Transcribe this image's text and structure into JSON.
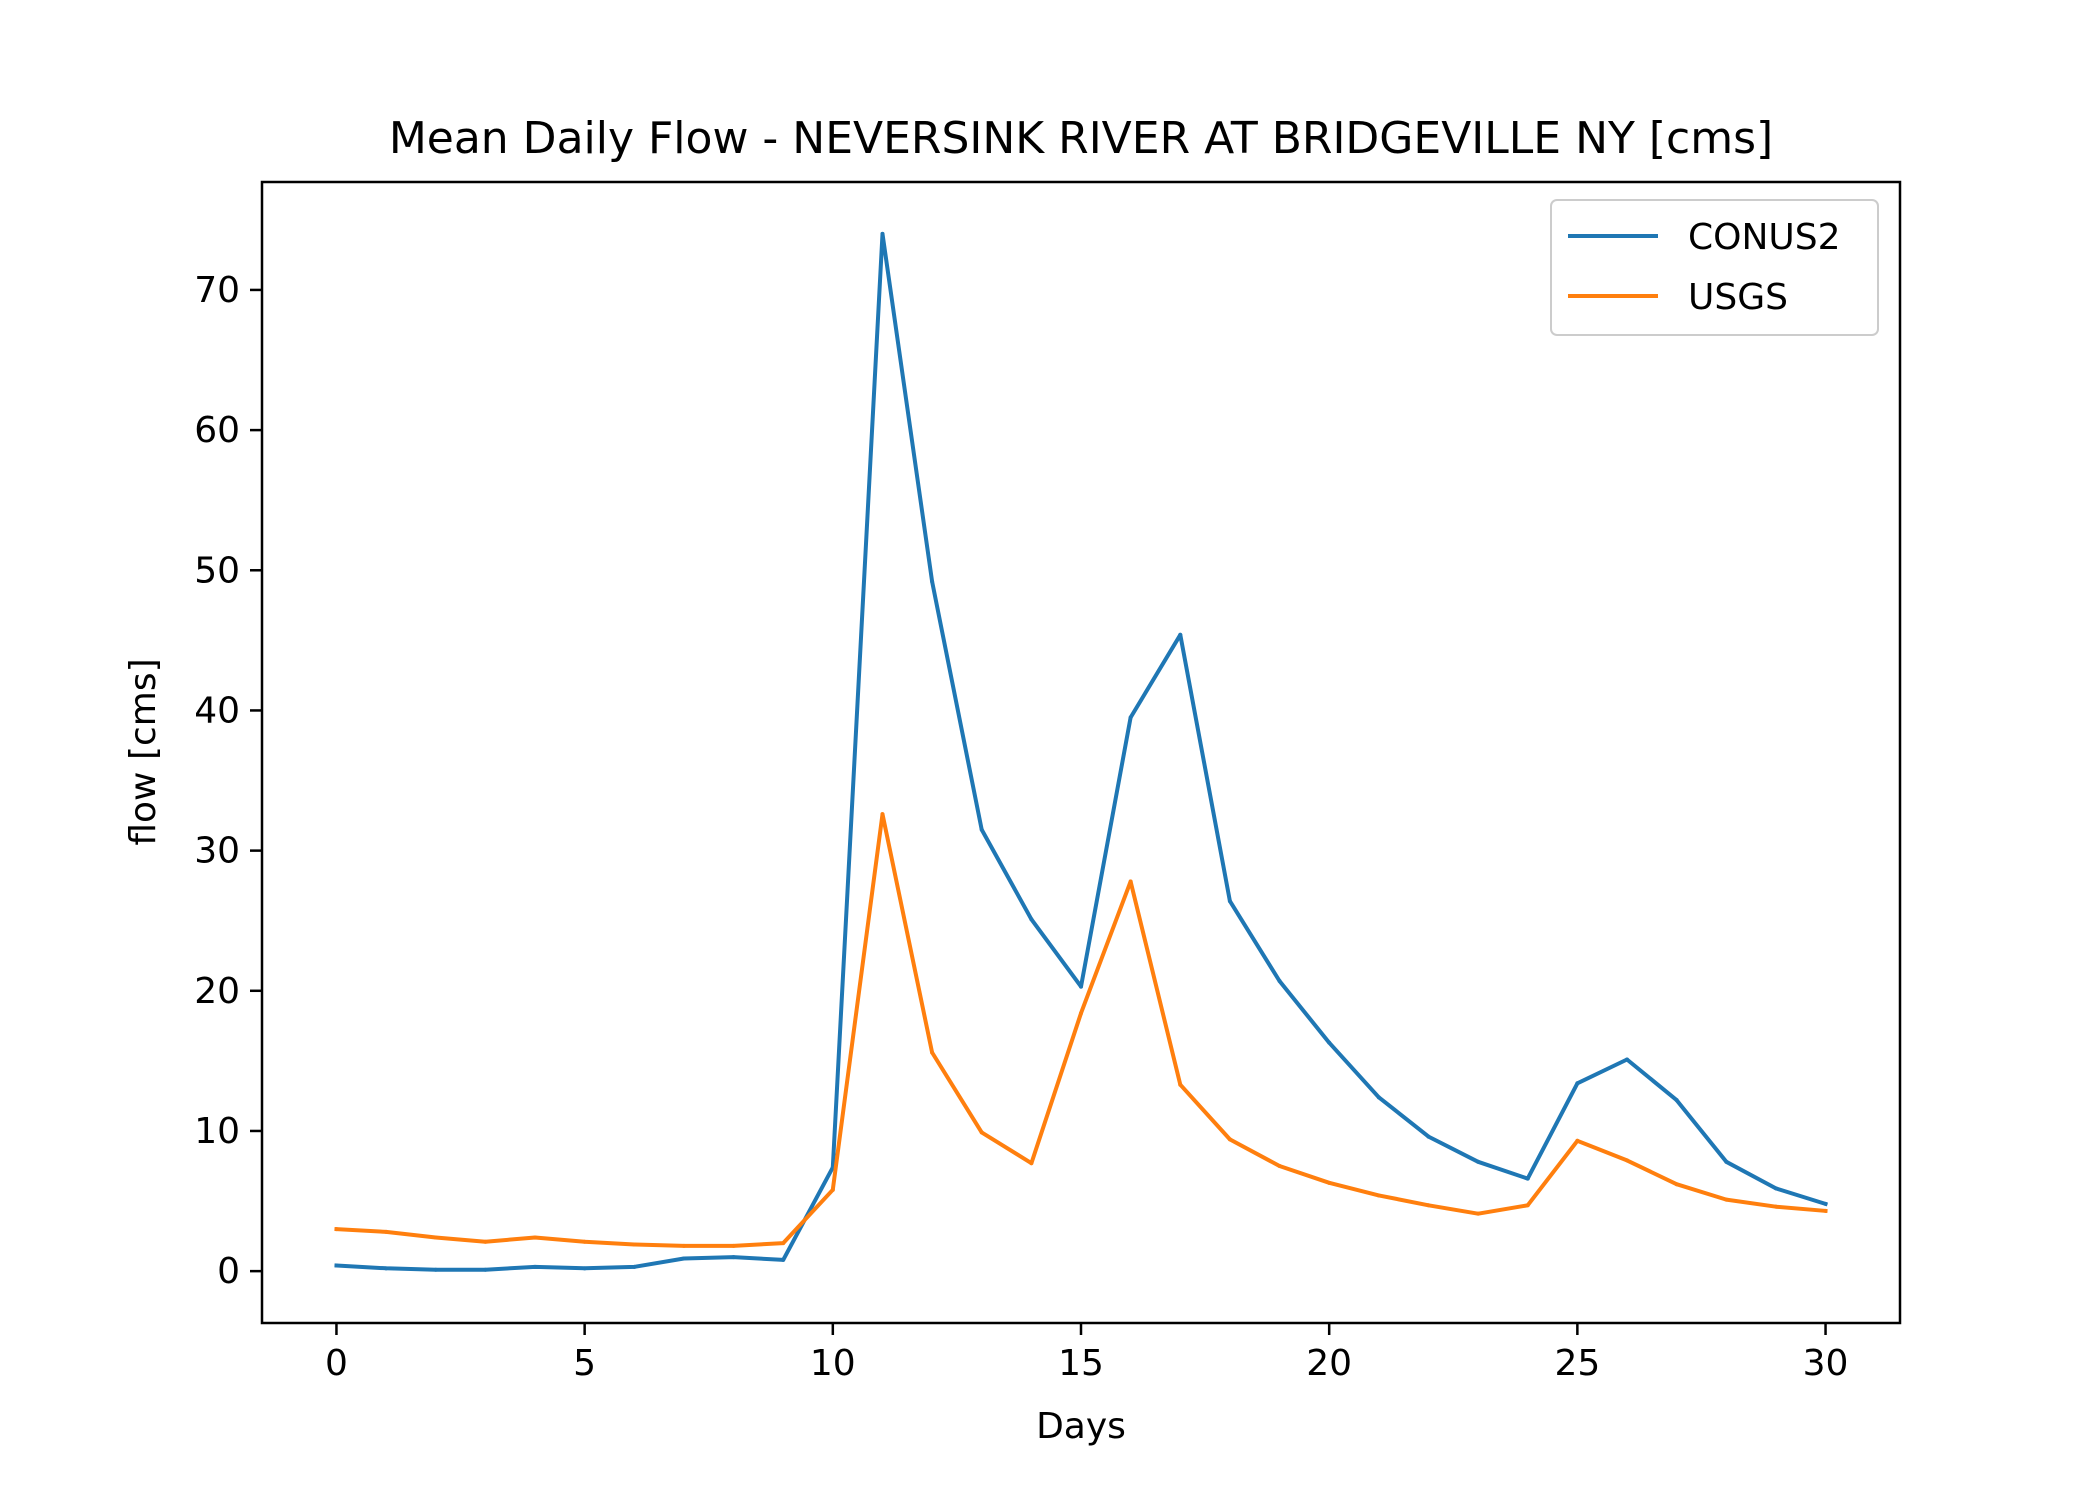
{
  "chart_data": {
    "type": "line",
    "title": "Mean Daily Flow - NEVERSINK RIVER AT BRIDGEVILLE NY [cms]",
    "xlabel": "Days",
    "ylabel": "flow [cms]",
    "xlim": [
      -1.5,
      31.5
    ],
    "ylim": [
      -3.7,
      77.7
    ],
    "xticks": [
      0,
      5,
      10,
      15,
      20,
      25,
      30
    ],
    "yticks": [
      0,
      10,
      20,
      30,
      40,
      50,
      60,
      70
    ],
    "grid": false,
    "legend_position": "top-right",
    "x": [
      0,
      1,
      2,
      3,
      4,
      5,
      6,
      7,
      8,
      9,
      10,
      11,
      12,
      13,
      14,
      15,
      16,
      17,
      18,
      19,
      20,
      21,
      22,
      23,
      24,
      25,
      26,
      27,
      28,
      29,
      30
    ],
    "series": [
      {
        "name": "CONUS2",
        "color": "#1f77b4",
        "values": [
          0.4,
          0.2,
          0.1,
          0.1,
          0.3,
          0.2,
          0.3,
          0.9,
          1.0,
          0.8,
          7.4,
          74.0,
          49.2,
          31.5,
          25.1,
          20.3,
          39.5,
          45.4,
          26.4,
          20.7,
          16.3,
          12.4,
          9.6,
          7.8,
          6.6,
          13.4,
          15.1,
          12.2,
          7.8,
          5.9,
          4.8
        ]
      },
      {
        "name": "USGS",
        "color": "#ff7f0e",
        "values": [
          3.0,
          2.8,
          2.4,
          2.1,
          2.4,
          2.1,
          1.9,
          1.8,
          1.8,
          2.0,
          5.8,
          32.6,
          15.6,
          9.9,
          7.7,
          18.4,
          27.8,
          13.3,
          9.4,
          7.5,
          6.3,
          5.4,
          4.7,
          4.1,
          4.7,
          9.3,
          7.9,
          6.2,
          5.1,
          4.6,
          4.3
        ]
      }
    ]
  }
}
